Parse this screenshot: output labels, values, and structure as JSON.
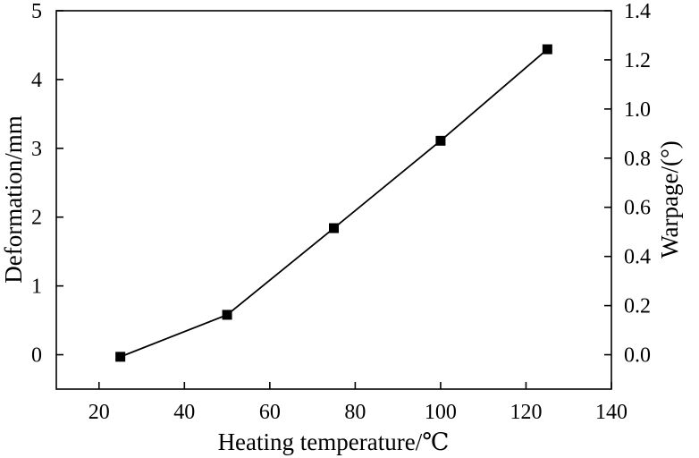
{
  "chart_data": {
    "type": "line",
    "xlabel": "Heating temperature/℃",
    "ylabel_left": "Deformation/mm",
    "ylabel_right": "Warpage/(°)",
    "xlim": [
      10,
      140
    ],
    "ylim_left": [
      -0.5,
      5
    ],
    "ylim_right": [
      -0.14,
      1.4
    ],
    "x_ticks": [
      20,
      40,
      60,
      80,
      100,
      120,
      140
    ],
    "x_tick_labels": [
      "20",
      "40",
      "60",
      "80",
      "100",
      "120",
      "140"
    ],
    "y_left_ticks": [
      0,
      1,
      2,
      3,
      4,
      5
    ],
    "y_left_tick_labels": [
      "0",
      "1",
      "2",
      "3",
      "4",
      "5"
    ],
    "y_right_ticks": [
      0.0,
      0.2,
      0.4,
      0.6,
      0.8,
      1.0,
      1.2,
      1.4
    ],
    "y_right_tick_labels": [
      "0.0",
      "0.2",
      "0.4",
      "0.6",
      "0.8",
      "1.0",
      "1.2",
      "1.4"
    ],
    "series": [
      {
        "x": [
          25,
          50,
          75,
          100,
          125
        ],
        "values": [
          -0.03,
          0.58,
          1.84,
          3.11,
          4.44
        ],
        "axis": "left",
        "marker": "square",
        "color": "#000000"
      }
    ],
    "grid": false
  }
}
